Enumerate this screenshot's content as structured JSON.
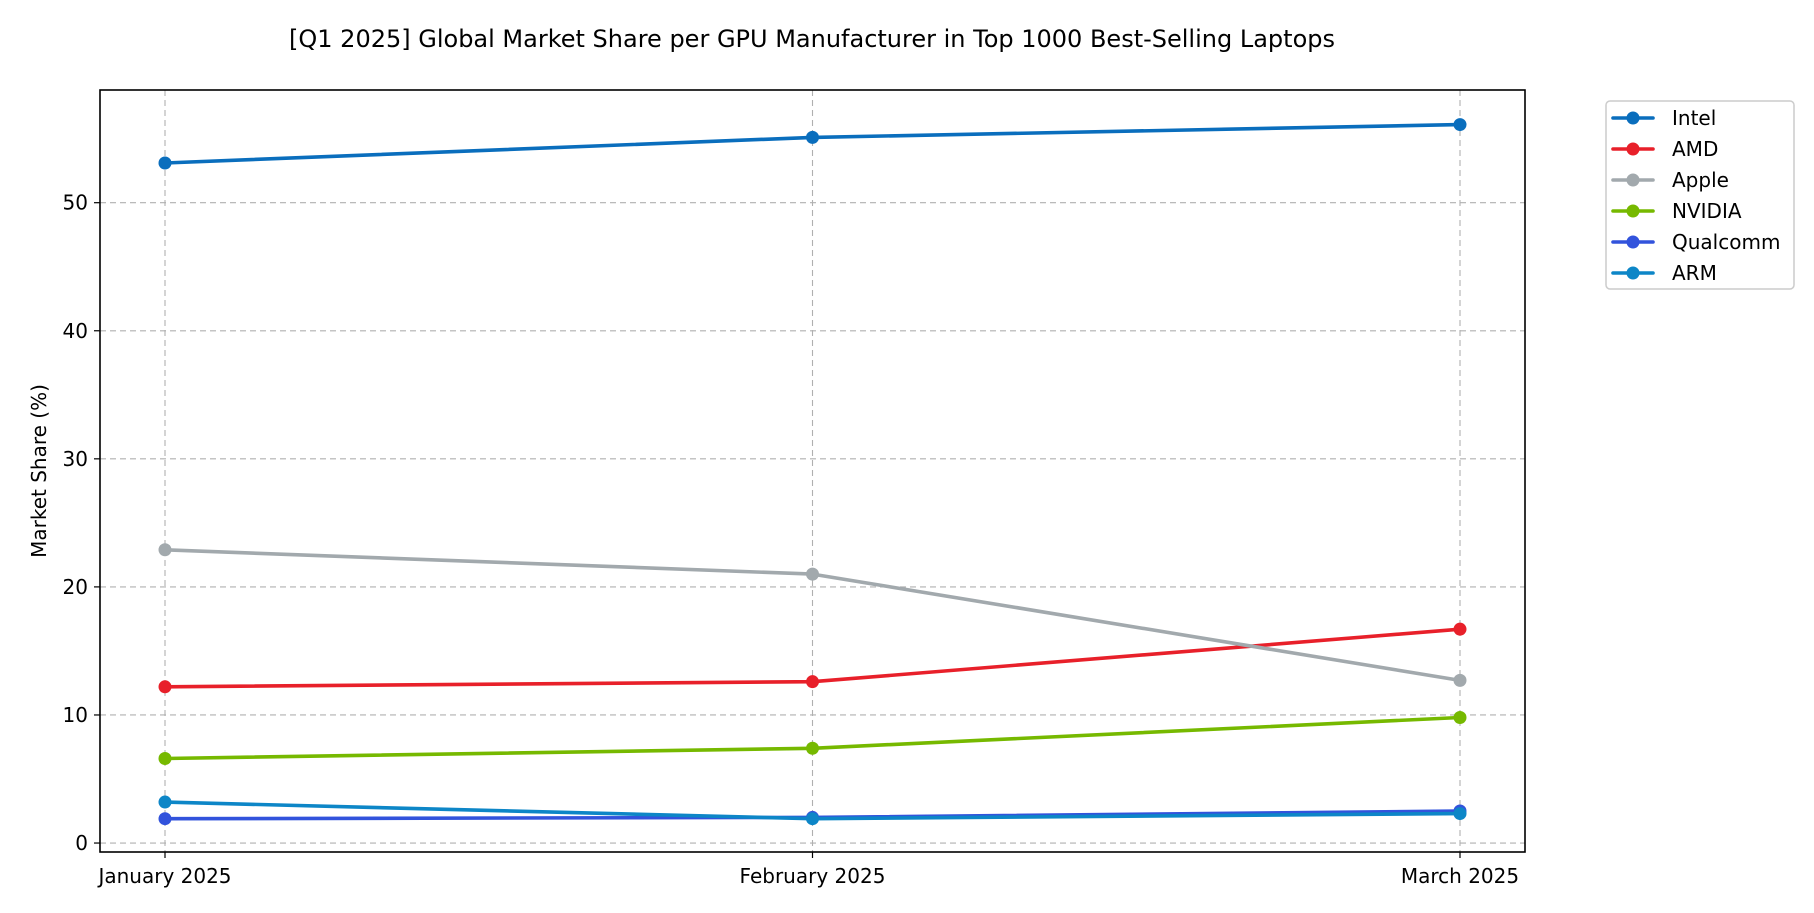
{
  "chart_data": {
    "type": "line",
    "title": "[Q1 2025] Global Market Share per GPU Manufacturer in Top 1000 Best-Selling Laptops",
    "xlabel": "",
    "ylabel": "Market Share (%)",
    "categories": [
      "January 2025",
      "February 2025",
      "March 2025"
    ],
    "ylim": [
      -0.7,
      58.8
    ],
    "yticks": [
      0,
      10,
      20,
      30,
      40,
      50
    ],
    "grid": true,
    "legend_position": "outside-top-right",
    "series": [
      {
        "name": "Intel",
        "color": "#0a6ebd",
        "values": [
          53.1,
          55.1,
          56.1
        ]
      },
      {
        "name": "AMD",
        "color": "#e8202a",
        "values": [
          12.2,
          12.6,
          16.7
        ]
      },
      {
        "name": "Apple",
        "color": "#a2a9ad",
        "values": [
          22.9,
          21.0,
          12.7
        ]
      },
      {
        "name": "NVIDIA",
        "color": "#76b900",
        "values": [
          6.6,
          7.4,
          9.8
        ]
      },
      {
        "name": "Qualcomm",
        "color": "#3253dc",
        "values": [
          1.9,
          2.0,
          2.5
        ]
      },
      {
        "name": "ARM",
        "color": "#0d86c7",
        "values": [
          3.2,
          1.9,
          2.3
        ]
      }
    ]
  }
}
